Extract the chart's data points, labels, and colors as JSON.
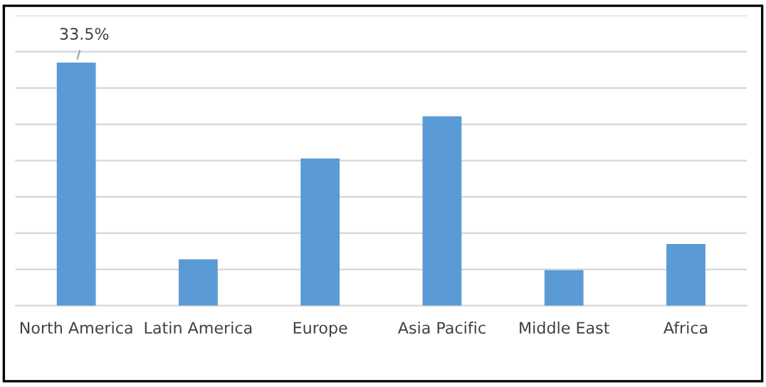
{
  "chart_data": {
    "type": "bar",
    "categories": [
      "North America",
      "Latin America",
      "Europe",
      "Asia Pacific",
      "Middle East",
      "Africa"
    ],
    "values": [
      33.5,
      6.4,
      20.3,
      26.1,
      4.9,
      8.5
    ],
    "value_labels": [
      "33.5%",
      null,
      null,
      null,
      null,
      null
    ],
    "color": "#5b9bd5",
    "grid": "y",
    "ylim": [
      0,
      40
    ],
    "yticks": [
      {
        "value": 0,
        "label": null
      },
      {
        "value": 5,
        "label": null
      },
      {
        "value": 10,
        "label": null
      },
      {
        "value": 15,
        "label": null
      },
      {
        "value": 20,
        "label": null
      },
      {
        "value": 25,
        "label": null
      },
      {
        "value": 30,
        "label": null
      },
      {
        "value": 35,
        "label": null
      },
      {
        "value": 40,
        "label": null
      }
    ]
  }
}
